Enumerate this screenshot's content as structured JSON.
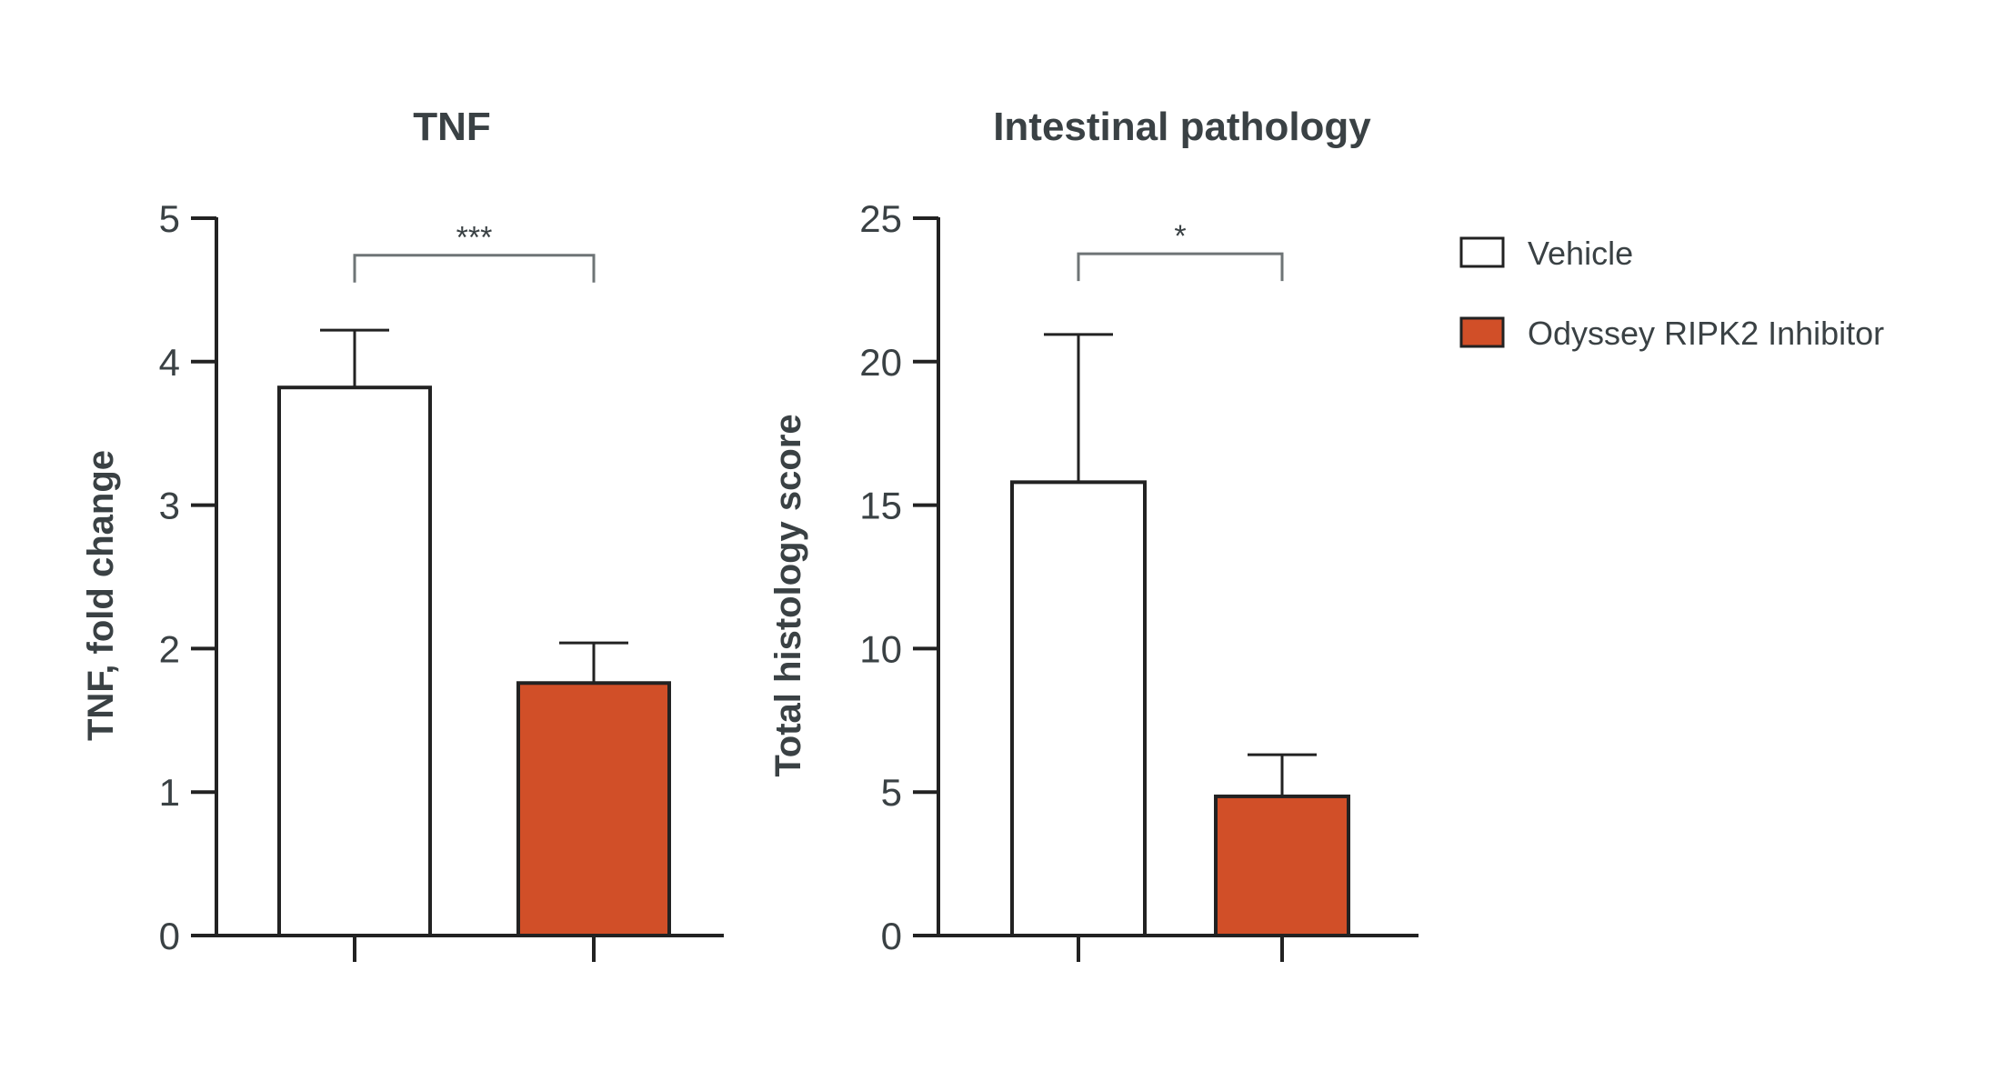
{
  "chart_data": [
    {
      "type": "bar",
      "title": "TNF",
      "xlabel": "",
      "ylabel": "TNF, fold change",
      "ylim": [
        0,
        5
      ],
      "yticks": [
        0,
        1,
        2,
        3,
        4,
        5
      ],
      "categories": [
        "Vehicle",
        "Odyssey RIPK2 Inhibitor"
      ],
      "values": [
        3.82,
        1.76
      ],
      "error_upper": [
        0.4,
        0.28
      ],
      "significance": {
        "label": "***",
        "between": [
          0,
          1
        ],
        "y": 4.97
      },
      "colors": [
        "#ffffff",
        "#d14f28"
      ]
    },
    {
      "type": "bar",
      "title": "Intestinal pathology",
      "xlabel": "",
      "ylabel": "Total histology score",
      "ylim": [
        0,
        25
      ],
      "yticks": [
        0,
        5,
        10,
        15,
        20,
        25
      ],
      "categories": [
        "Vehicle",
        "Odyssey RIPK2 Inhibitor"
      ],
      "values": [
        15.8,
        4.85
      ],
      "error_upper": [
        5.15,
        1.45
      ],
      "significance": {
        "label": "*",
        "between": [
          0,
          1
        ],
        "y": 24.9
      },
      "colors": [
        "#ffffff",
        "#d14f28"
      ]
    }
  ],
  "legend": {
    "position": "right",
    "items": [
      {
        "label": "Vehicle",
        "color": "#ffffff"
      },
      {
        "label": "Odyssey RIPK2 Inhibitor",
        "color": "#d14f28"
      }
    ]
  }
}
